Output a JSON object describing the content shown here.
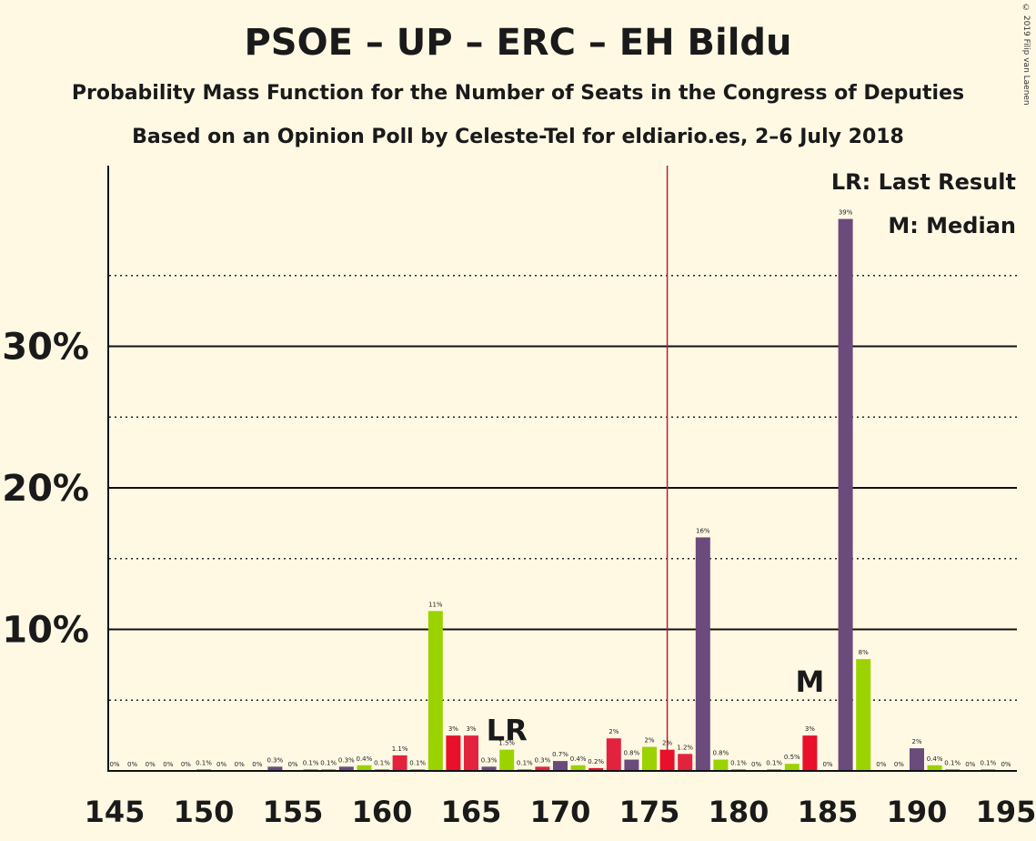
{
  "title": "PSOE – UP – ERC – EH Bildu",
  "subtitle": "Probability Mass Function for the Number of Seats in the Congress of Deputies",
  "source": "Based on an Opinion Poll by Celeste-Tel for eldiario.es, 2–6 July 2018",
  "copyright": "© 2019 Filip van Laenen",
  "legend": {
    "last_result": "LR: Last Result",
    "median": "M: Median"
  },
  "colors": {
    "background": "#FFF9E4",
    "party_colors": [
      "#E3233E",
      "#6B4A7C",
      "#9BD300",
      "#E8102A"
    ],
    "last_result_line": "#B22234"
  },
  "chart_data": {
    "type": "bar",
    "x": [
      145,
      146,
      147,
      148,
      149,
      150,
      151,
      152,
      153,
      154,
      155,
      156,
      157,
      158,
      159,
      160,
      161,
      162,
      163,
      164,
      165,
      166,
      167,
      168,
      169,
      170,
      171,
      172,
      173,
      174,
      175,
      176,
      177,
      178,
      179,
      180,
      181,
      182,
      183,
      184,
      185,
      186,
      187,
      188,
      189,
      190,
      191,
      192,
      193,
      194,
      195
    ],
    "values": [
      0,
      0,
      0,
      0,
      0,
      0.1,
      0,
      0,
      0,
      0.3,
      0,
      0.1,
      0.1,
      0.3,
      0.4,
      0.1,
      1.1,
      0.1,
      11.3,
      2.5,
      2.5,
      0.3,
      1.5,
      0.1,
      0.3,
      0.7,
      0.4,
      0.2,
      2.3,
      0.8,
      1.7,
      1.5,
      1.2,
      16.5,
      0.8,
      0.1,
      0,
      0.1,
      0.5,
      2.5,
      0,
      39,
      7.9,
      0,
      0,
      1.6,
      0.4,
      0.1,
      0,
      0.1,
      0
    ],
    "value_labels": [
      "0%",
      "0%",
      "0%",
      "0%",
      "0%",
      "0.1%",
      "0%",
      "0%",
      "0%",
      "0.3%",
      "0%",
      "0.1%",
      "0.1%",
      "0.3%",
      "0.4%",
      "0.1%",
      "1.1%",
      "0.1%",
      "11%",
      "3%",
      "3%",
      "0.3%",
      "1.5%",
      "0.1%",
      "0.3%",
      "0.7%",
      "0.4%",
      "0.2%",
      "2%",
      "0.8%",
      "2%",
      "2%",
      "1.2%",
      "16%",
      "0.8%",
      "0.1%",
      "0%",
      "0.1%",
      "0.5%",
      "3%",
      "0%",
      "39%",
      "8%",
      "0%",
      "0%",
      "2%",
      "0.4%",
      "0.1%",
      "0%",
      "0.1%",
      "0%"
    ],
    "x_ticks": [
      145,
      150,
      155,
      160,
      165,
      170,
      175,
      180,
      185,
      190,
      195
    ],
    "y_ticks": [
      10,
      20,
      30
    ],
    "y_tick_labels": [
      "10%",
      "20%",
      "30%"
    ],
    "ylim": [
      0,
      42.5
    ],
    "last_result": {
      "seat": 167,
      "label": "LR"
    },
    "median": {
      "seat": 184,
      "label": "M"
    },
    "majority_line": 176
  }
}
